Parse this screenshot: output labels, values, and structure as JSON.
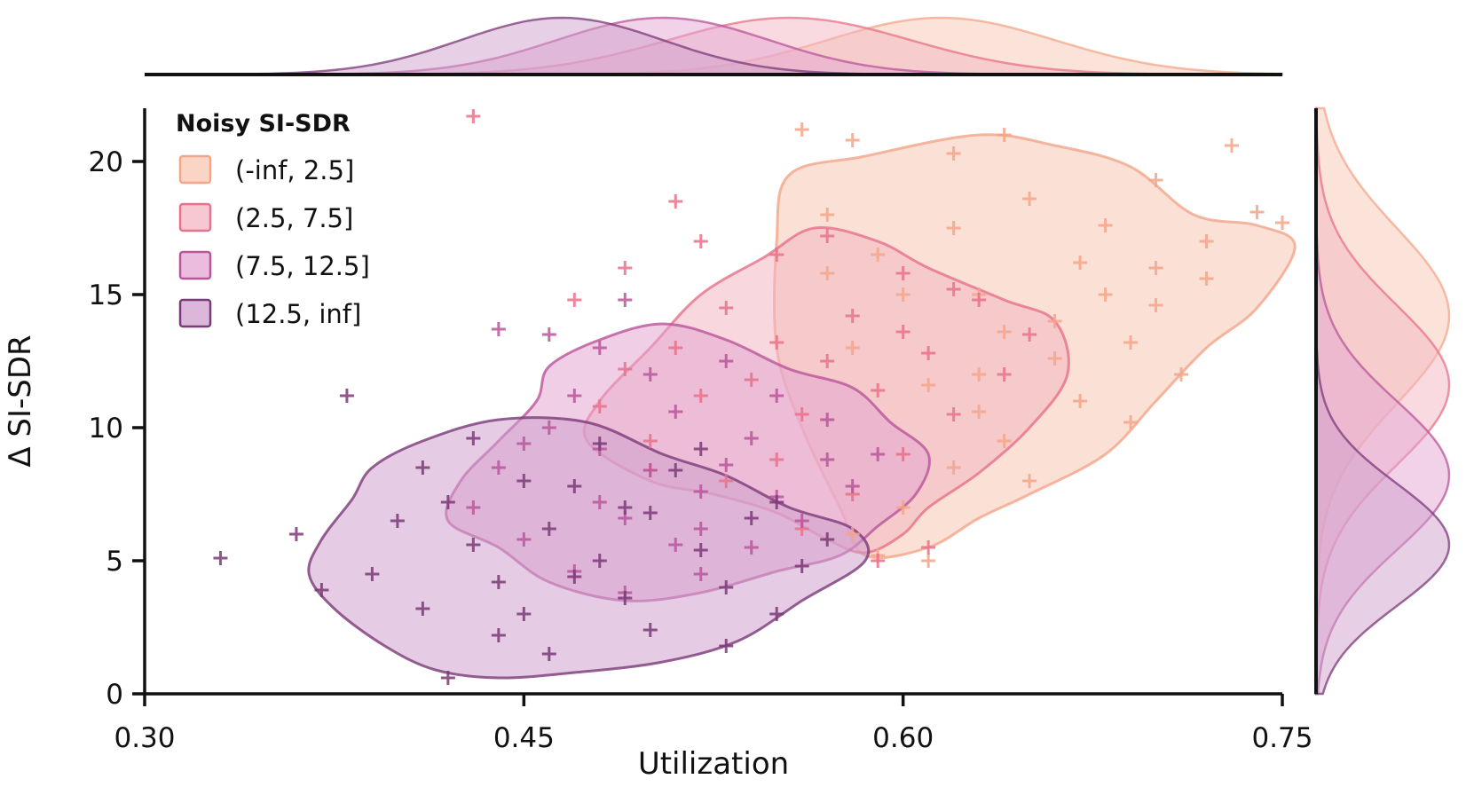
{
  "chart_data": {
    "type": "scatter",
    "title": "",
    "xlabel": "Utilization",
    "ylabel": "Δ SI-SDR",
    "xlim": [
      0.3,
      0.75
    ],
    "ylim": [
      0,
      22
    ],
    "xticks": [
      0.3,
      0.45,
      0.6,
      0.75
    ],
    "xtick_labels": [
      "0.30",
      "0.45",
      "0.60",
      "0.75"
    ],
    "yticks": [
      0,
      5,
      10,
      15,
      20
    ],
    "ytick_labels": [
      "0",
      "5",
      "10",
      "15",
      "20"
    ],
    "grid": false,
    "marker": "+",
    "legend": {
      "title": "Noisy SI-SDR",
      "placement": "top-left"
    },
    "marginals": {
      "top": "kde of Utilization per group",
      "right": "kde of Δ SI-SDR per group"
    },
    "series": [
      {
        "name": "(-inf, 2.5]",
        "color": "#f3a58a",
        "fill": "#f8c7b3",
        "x_center": 0.615,
        "x_sd": 0.045,
        "y_center": 14.2,
        "y_sd": 3.3,
        "contour": [
          [
            0.555,
            19.5
          ],
          [
            0.585,
            20.2
          ],
          [
            0.63,
            21.0
          ],
          [
            0.66,
            20.6
          ],
          [
            0.69,
            19.8
          ],
          [
            0.715,
            18.0
          ],
          [
            0.74,
            17.6
          ],
          [
            0.755,
            16.8
          ],
          [
            0.74,
            14.5
          ],
          [
            0.72,
            13.0
          ],
          [
            0.7,
            11.0
          ],
          [
            0.68,
            9.0
          ],
          [
            0.65,
            7.5
          ],
          [
            0.63,
            6.6
          ],
          [
            0.61,
            5.5
          ],
          [
            0.585,
            5.2
          ],
          [
            0.575,
            7.0
          ],
          [
            0.56,
            10.0
          ],
          [
            0.55,
            13.0
          ],
          [
            0.55,
            17.0
          ]
        ],
        "points": [
          [
            0.56,
            21.2
          ],
          [
            0.58,
            20.8
          ],
          [
            0.62,
            20.3
          ],
          [
            0.64,
            21.0
          ],
          [
            0.7,
            19.3
          ],
          [
            0.73,
            20.6
          ],
          [
            0.74,
            18.1
          ],
          [
            0.75,
            17.7
          ],
          [
            0.72,
            17.0
          ],
          [
            0.7,
            16.0
          ],
          [
            0.68,
            15.0
          ],
          [
            0.66,
            14.0
          ],
          [
            0.69,
            13.2
          ],
          [
            0.71,
            12.0
          ],
          [
            0.67,
            11.0
          ],
          [
            0.64,
            9.5
          ],
          [
            0.62,
            8.5
          ],
          [
            0.65,
            8.0
          ],
          [
            0.6,
            7.0
          ],
          [
            0.58,
            6.0
          ],
          [
            0.59,
            5.2
          ],
          [
            0.61,
            5.0
          ],
          [
            0.63,
            12.0
          ],
          [
            0.6,
            15.0
          ],
          [
            0.57,
            18.0
          ],
          [
            0.59,
            16.5
          ],
          [
            0.62,
            17.5
          ],
          [
            0.65,
            18.6
          ],
          [
            0.68,
            17.6
          ],
          [
            0.7,
            14.6
          ],
          [
            0.66,
            12.6
          ],
          [
            0.64,
            13.6
          ],
          [
            0.61,
            11.6
          ],
          [
            0.58,
            13.0
          ],
          [
            0.57,
            15.8
          ],
          [
            0.63,
            15.0
          ],
          [
            0.67,
            16.2
          ],
          [
            0.72,
            15.6
          ],
          [
            0.69,
            10.2
          ],
          [
            0.63,
            10.6
          ]
        ]
      },
      {
        "name": "(2.5, 7.5]",
        "color": "#e7718a",
        "fill": "#f3b6c2",
        "x_center": 0.555,
        "x_sd": 0.048,
        "y_center": 11.6,
        "y_sd": 3.0,
        "contour": [
          [
            0.52,
            15.0
          ],
          [
            0.545,
            16.4
          ],
          [
            0.565,
            17.5
          ],
          [
            0.59,
            17.0
          ],
          [
            0.61,
            16.0
          ],
          [
            0.64,
            14.8
          ],
          [
            0.66,
            14.0
          ],
          [
            0.665,
            12.0
          ],
          [
            0.65,
            10.0
          ],
          [
            0.63,
            8.3
          ],
          [
            0.61,
            7.0
          ],
          [
            0.6,
            6.0
          ],
          [
            0.585,
            5.3
          ],
          [
            0.57,
            5.8
          ],
          [
            0.55,
            6.8
          ],
          [
            0.525,
            7.5
          ],
          [
            0.5,
            8.0
          ],
          [
            0.475,
            9.5
          ],
          [
            0.48,
            11.0
          ],
          [
            0.5,
            13.0
          ]
        ],
        "points": [
          [
            0.52,
            17.0
          ],
          [
            0.55,
            16.5
          ],
          [
            0.57,
            17.2
          ],
          [
            0.6,
            15.8
          ],
          [
            0.63,
            14.8
          ],
          [
            0.65,
            13.5
          ],
          [
            0.64,
            12.0
          ],
          [
            0.62,
            10.5
          ],
          [
            0.6,
            9.0
          ],
          [
            0.58,
            7.5
          ],
          [
            0.56,
            6.2
          ],
          [
            0.59,
            5.0
          ],
          [
            0.61,
            5.5
          ],
          [
            0.53,
            8.0
          ],
          [
            0.5,
            9.5
          ],
          [
            0.48,
            10.8
          ],
          [
            0.49,
            12.2
          ],
          [
            0.51,
            13.0
          ],
          [
            0.53,
            14.5
          ],
          [
            0.55,
            13.2
          ],
          [
            0.57,
            12.5
          ],
          [
            0.59,
            11.4
          ],
          [
            0.61,
            12.8
          ],
          [
            0.56,
            10.5
          ],
          [
            0.54,
            11.8
          ],
          [
            0.58,
            14.2
          ],
          [
            0.52,
            11.2
          ],
          [
            0.5,
            8.4
          ],
          [
            0.55,
            8.8
          ],
          [
            0.6,
            13.6
          ],
          [
            0.49,
            16.0
          ],
          [
            0.51,
            18.5
          ],
          [
            0.43,
            21.7
          ],
          [
            0.62,
            15.2
          ],
          [
            0.47,
            14.8
          ]
        ]
      },
      {
        "name": "(7.5, 12.5]",
        "color": "#b9559a",
        "fill": "#e4a6d2",
        "x_center": 0.505,
        "x_sd": 0.042,
        "y_center": 8.2,
        "y_sd": 2.8,
        "contour": [
          [
            0.46,
            12.3
          ],
          [
            0.48,
            13.3
          ],
          [
            0.505,
            13.9
          ],
          [
            0.53,
            13.3
          ],
          [
            0.555,
            12.2
          ],
          [
            0.58,
            11.5
          ],
          [
            0.595,
            10.2
          ],
          [
            0.61,
            9.0
          ],
          [
            0.605,
            7.5
          ],
          [
            0.59,
            6.3
          ],
          [
            0.575,
            5.2
          ],
          [
            0.55,
            4.6
          ],
          [
            0.52,
            3.8
          ],
          [
            0.49,
            3.5
          ],
          [
            0.46,
            4.2
          ],
          [
            0.44,
            5.5
          ],
          [
            0.42,
            6.5
          ],
          [
            0.425,
            8.0
          ],
          [
            0.44,
            9.5
          ],
          [
            0.455,
            11.0
          ]
        ],
        "points": [
          [
            0.46,
            13.5
          ],
          [
            0.48,
            13.0
          ],
          [
            0.5,
            12.0
          ],
          [
            0.53,
            12.5
          ],
          [
            0.55,
            11.2
          ],
          [
            0.57,
            10.3
          ],
          [
            0.59,
            9.0
          ],
          [
            0.58,
            7.8
          ],
          [
            0.56,
            6.5
          ],
          [
            0.54,
            5.5
          ],
          [
            0.52,
            4.5
          ],
          [
            0.49,
            3.8
          ],
          [
            0.47,
            4.6
          ],
          [
            0.45,
            5.8
          ],
          [
            0.43,
            7.0
          ],
          [
            0.44,
            8.5
          ],
          [
            0.46,
            10.0
          ],
          [
            0.48,
            9.2
          ],
          [
            0.5,
            8.4
          ],
          [
            0.52,
            7.6
          ],
          [
            0.54,
            9.6
          ],
          [
            0.51,
            10.6
          ],
          [
            0.47,
            11.2
          ],
          [
            0.53,
            8.6
          ],
          [
            0.49,
            6.6
          ],
          [
            0.51,
            5.6
          ],
          [
            0.55,
            7.4
          ],
          [
            0.57,
            8.8
          ],
          [
            0.45,
            9.4
          ],
          [
            0.48,
            7.2
          ],
          [
            0.52,
            6.2
          ],
          [
            0.44,
            13.7
          ],
          [
            0.49,
            14.8
          ]
        ]
      },
      {
        "name": "(12.5, inf]",
        "color": "#7b3a78",
        "fill": "#cfa0cc",
        "x_center": 0.465,
        "x_sd": 0.04,
        "y_center": 5.6,
        "y_sd": 2.3,
        "contour": [
          [
            0.39,
            8.5
          ],
          [
            0.41,
            9.5
          ],
          [
            0.44,
            10.3
          ],
          [
            0.475,
            10.2
          ],
          [
            0.505,
            9.0
          ],
          [
            0.53,
            8.2
          ],
          [
            0.555,
            7.0
          ],
          [
            0.58,
            6.2
          ],
          [
            0.585,
            5.0
          ],
          [
            0.56,
            3.5
          ],
          [
            0.535,
            2.0
          ],
          [
            0.505,
            1.2
          ],
          [
            0.47,
            0.8
          ],
          [
            0.44,
            0.6
          ],
          [
            0.415,
            0.9
          ],
          [
            0.395,
            1.8
          ],
          [
            0.375,
            3.2
          ],
          [
            0.365,
            4.5
          ],
          [
            0.37,
            5.8
          ],
          [
            0.382,
            7.3
          ]
        ],
        "points": [
          [
            0.33,
            5.1
          ],
          [
            0.36,
            6.0
          ],
          [
            0.38,
            11.2
          ],
          [
            0.37,
            3.9
          ],
          [
            0.39,
            4.5
          ],
          [
            0.4,
            6.5
          ],
          [
            0.41,
            8.5
          ],
          [
            0.42,
            7.2
          ],
          [
            0.43,
            5.6
          ],
          [
            0.44,
            4.2
          ],
          [
            0.45,
            3.0
          ],
          [
            0.46,
            6.2
          ],
          [
            0.47,
            7.8
          ],
          [
            0.48,
            5.0
          ],
          [
            0.49,
            3.6
          ],
          [
            0.5,
            6.8
          ],
          [
            0.51,
            8.4
          ],
          [
            0.52,
            5.4
          ],
          [
            0.53,
            4.0
          ],
          [
            0.54,
            6.6
          ],
          [
            0.55,
            7.2
          ],
          [
            0.56,
            4.8
          ],
          [
            0.57,
            5.8
          ],
          [
            0.42,
            0.6
          ],
          [
            0.44,
            2.2
          ],
          [
            0.46,
            1.5
          ],
          [
            0.48,
            9.4
          ],
          [
            0.43,
            9.6
          ],
          [
            0.5,
            2.4
          ],
          [
            0.53,
            1.8
          ],
          [
            0.55,
            3.0
          ],
          [
            0.45,
            8.0
          ],
          [
            0.41,
            3.2
          ],
          [
            0.47,
            4.4
          ],
          [
            0.52,
            9.2
          ],
          [
            0.49,
            7.0
          ]
        ]
      }
    ]
  }
}
